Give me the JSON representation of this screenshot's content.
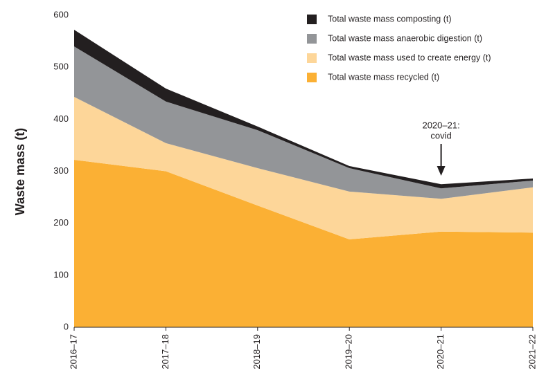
{
  "chart_data": {
    "type": "stacked_area",
    "y_label": "Waste mass (t)",
    "categories": [
      "2016–17",
      "2017–18",
      "2018–19",
      "2019–20",
      "2020–21",
      "2021–22"
    ],
    "series": [
      {
        "name": "Total waste mass recycled (t)",
        "color": "#fbb034",
        "values": [
          322,
          300,
          234,
          169,
          184,
          182
        ]
      },
      {
        "name": "Total waste mass used to create energy (t)",
        "color": "#fdd699",
        "values": [
          121,
          54,
          72,
          92,
          63,
          87
        ]
      },
      {
        "name": "Total waste mass anaerobic digestion (t)",
        "color": "#939598",
        "values": [
          97,
          80,
          73,
          45,
          20,
          13
        ]
      },
      {
        "name": "Total waste mass composting (t)",
        "color": "#231f20",
        "values": [
          32,
          25,
          7,
          4,
          8,
          4
        ]
      }
    ],
    "ylim": [
      0,
      600
    ],
    "yticks": [
      0,
      100,
      200,
      300,
      400,
      500,
      600
    ],
    "grid": false,
    "legend": "top-right",
    "annotation": {
      "lines": [
        "2020–21:",
        "covid"
      ],
      "category": "2020–21"
    }
  }
}
